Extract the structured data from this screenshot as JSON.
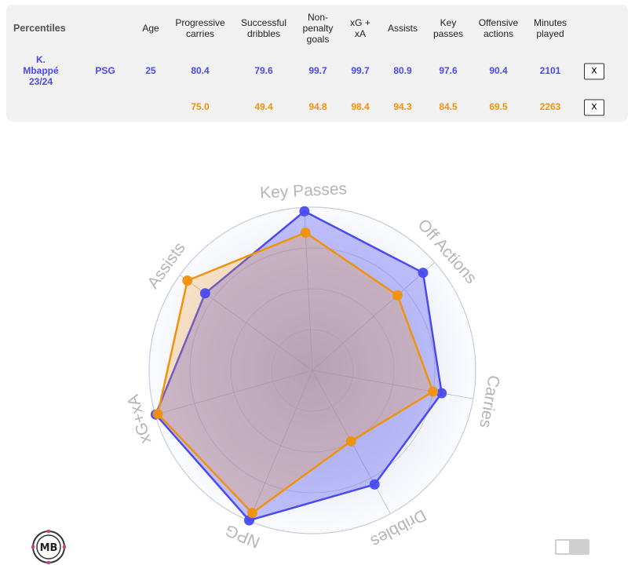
{
  "table": {
    "headers": {
      "percentiles": "Percentiles",
      "age": "Age",
      "prog_carries": [
        "Progressive",
        "carries"
      ],
      "succ_dribbles": [
        "Successful",
        "dribbles"
      ],
      "np_goals": [
        "Non-",
        "penalty",
        "goals"
      ],
      "xg_xa": [
        "xG +",
        "xA"
      ],
      "assists": "Assists",
      "key_passes": [
        "Key",
        "passes"
      ],
      "off_actions": [
        "Offensive",
        "actions"
      ],
      "minutes": [
        "Minutes",
        "played"
      ]
    },
    "rows": [
      {
        "player": [
          "K.",
          "Mbappé",
          "23/24"
        ],
        "team": "PSG",
        "age": "25",
        "prog_carries": "80.4",
        "succ_dribbles": "79.6",
        "np_goals": "99.7",
        "xg_xa": "99.7",
        "assists": "80.9",
        "key_passes": "97.6",
        "off_actions": "90.4",
        "minutes": "2101",
        "remove_label": "x"
      },
      {
        "player": [
          "",
          "",
          ""
        ],
        "team": "",
        "age": "",
        "prog_carries": "75.0",
        "succ_dribbles": "49.4",
        "np_goals": "94.8",
        "xg_xa": "98.4",
        "assists": "94.3",
        "key_passes": "84.5",
        "off_actions": "69.5",
        "minutes": "2263",
        "remove_label": "x"
      }
    ]
  },
  "chart_data": {
    "type": "radar",
    "axes": [
      "Key Passes",
      "Off Actions",
      "Carries",
      "Dribbles",
      "NPG",
      "xG+xA",
      "Assists"
    ],
    "range": [
      0,
      100
    ],
    "series": [
      {
        "color": "#4a4af0",
        "fill": "rgba(80,80,245,0.35)",
        "values": [
          97.6,
          90.4,
          80.4,
          79.6,
          99.7,
          99.7,
          80.9
        ]
      },
      {
        "color": "#f0920c",
        "fill": "rgba(245,150,30,0.25)",
        "values": [
          84.5,
          69.5,
          75.0,
          49.4,
          94.8,
          98.4,
          94.3
        ]
      }
    ]
  },
  "logo": {
    "text": "MB"
  },
  "colors": {
    "blue": "#4a4af0",
    "orange": "#f0920c",
    "axis_label": "#b5b5b5"
  }
}
